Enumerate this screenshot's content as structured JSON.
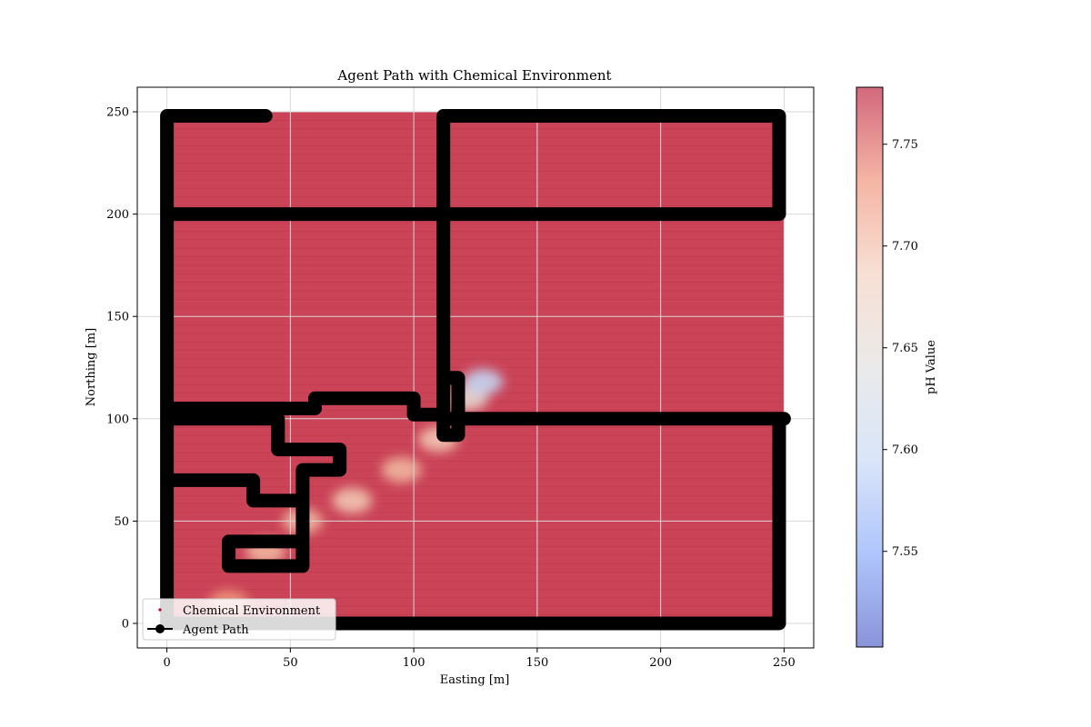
{
  "chart_data": {
    "type": "scatter",
    "title": "Agent Path with Chemical Environment",
    "xlabel": "Easting [m]",
    "ylabel": "Northing [m]",
    "xlim": [
      -12,
      262
    ],
    "ylim": [
      -12,
      262
    ],
    "x_ticks": [
      0,
      50,
      100,
      150,
      200,
      250
    ],
    "y_ticks": [
      0,
      50,
      100,
      150,
      200,
      250
    ],
    "grid": true,
    "legend_position": "lower-left",
    "legend": [
      {
        "label": "Chemical Environment",
        "marker": "dot",
        "color": "#b40426"
      },
      {
        "label": "Agent Path",
        "marker": "line-dot",
        "color": "#000000"
      }
    ],
    "colorbar": {
      "label": "pH Value",
      "cmap": "coolwarm",
      "range": [
        7.503,
        7.778
      ],
      "ticks": [
        "7.55",
        "7.60",
        "7.65",
        "7.70",
        "7.75"
      ],
      "tick_values": [
        7.55,
        7.6,
        7.65,
        7.7,
        7.75
      ],
      "colors": [
        "#3b4cc0",
        "#7b9ff9",
        "#c0d4f5",
        "#dddcdc",
        "#f2cbb7",
        "#ee8468",
        "#b40426"
      ]
    },
    "environment": {
      "x_range": [
        0,
        250
      ],
      "y_range": [
        0,
        250
      ],
      "background_ph": 7.77,
      "plume": [
        {
          "x": 25,
          "y": 10,
          "ph": 7.72
        },
        {
          "x": 40,
          "y": 35,
          "ph": 7.7
        },
        {
          "x": 55,
          "y": 50,
          "ph": 7.7
        },
        {
          "x": 75,
          "y": 60,
          "ph": 7.69
        },
        {
          "x": 95,
          "y": 75,
          "ph": 7.7
        },
        {
          "x": 110,
          "y": 90,
          "ph": 7.69
        },
        {
          "x": 122,
          "y": 110,
          "ph": 7.66
        },
        {
          "x": 128,
          "y": 118,
          "ph": 7.6
        }
      ]
    },
    "agent_path": [
      {
        "x": 0,
        "y": 248
      },
      {
        "x": 0,
        "y": 65
      },
      {
        "x": 0,
        "y": 0
      },
      {
        "x": 248,
        "y": 0
      },
      {
        "x": 248,
        "y": 100
      },
      {
        "x": 112,
        "y": 100
      },
      {
        "x": 112,
        "y": 248
      },
      {
        "x": 248,
        "y": 248
      },
      {
        "x": 248,
        "y": 200
      },
      {
        "x": 0,
        "y": 200
      },
      {
        "x": 0,
        "y": 248
      },
      {
        "x": 40,
        "y": 248
      },
      {
        "x": 0,
        "y": 248
      },
      {
        "x": 0,
        "y": 100
      },
      {
        "x": 45,
        "y": 100
      },
      {
        "x": 45,
        "y": 85
      },
      {
        "x": 70,
        "y": 85
      },
      {
        "x": 70,
        "y": 75
      },
      {
        "x": 55,
        "y": 75
      },
      {
        "x": 55,
        "y": 40
      },
      {
        "x": 25,
        "y": 40
      },
      {
        "x": 25,
        "y": 28
      },
      {
        "x": 55,
        "y": 28
      },
      {
        "x": 55,
        "y": 60
      },
      {
        "x": 35,
        "y": 60
      },
      {
        "x": 35,
        "y": 70
      },
      {
        "x": 0,
        "y": 70
      },
      {
        "x": 0,
        "y": 105
      },
      {
        "x": 60,
        "y": 105
      },
      {
        "x": 60,
        "y": 110
      },
      {
        "x": 100,
        "y": 110
      },
      {
        "x": 100,
        "y": 102
      },
      {
        "x": 112,
        "y": 102
      },
      {
        "x": 112,
        "y": 120
      },
      {
        "x": 118,
        "y": 120
      },
      {
        "x": 118,
        "y": 92
      },
      {
        "x": 112,
        "y": 92
      },
      {
        "x": 112,
        "y": 100
      },
      {
        "x": 250,
        "y": 100
      }
    ]
  }
}
